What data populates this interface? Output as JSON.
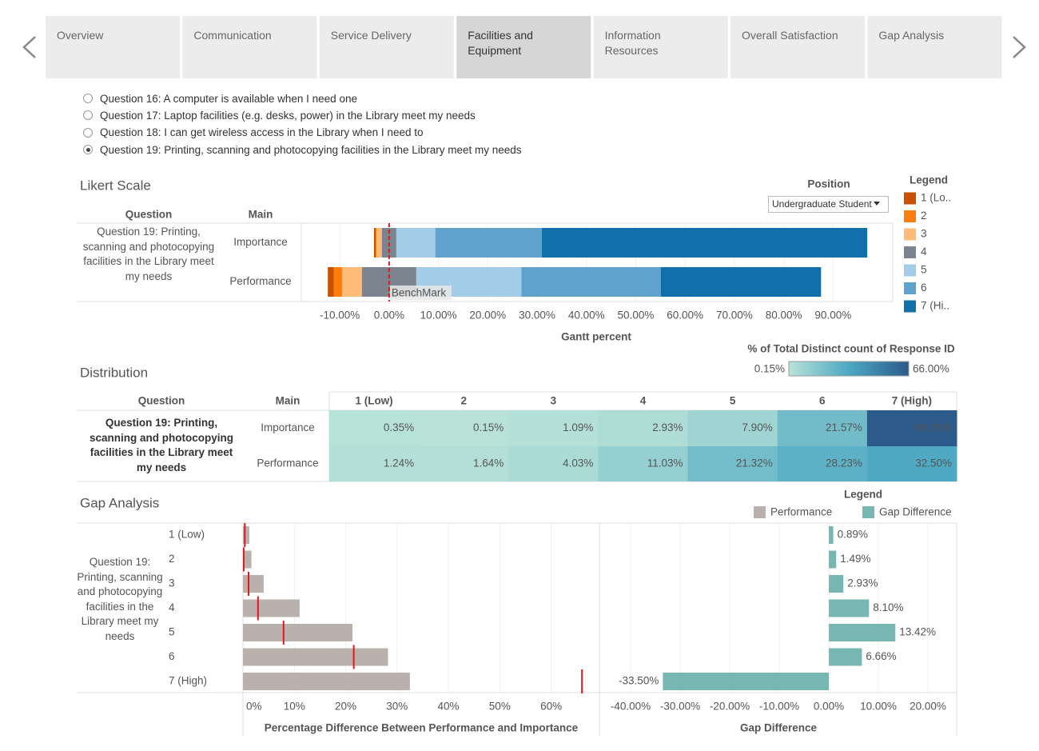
{
  "tabs": [
    "Overview",
    "Communication",
    "Service Delivery",
    "Facilities and Equipment",
    "Information Resources",
    "Overall Satisfaction",
    "Gap Analysis"
  ],
  "active_tab": 3,
  "questions": {
    "options": [
      "Question 16: A computer is available when I need one",
      "Question 17: Laptop facilities (e.g. desks, power) in the Library meet my needs",
      "Question 18: I can get wireless access in the Library when I need to",
      "Question 19: Printing, scanning and photocopying facilities in the Library meet my needs"
    ],
    "selected": 3
  },
  "chart_data": [
    {
      "type": "diverging_bar",
      "title": "Likert Scale",
      "filter_label": "Position",
      "filter_value": "Undergraduate Student",
      "legend_title": "Legend",
      "column_headers": [
        "Question",
        "Main"
      ],
      "group": "Question 19: Printing, scanning and photocopying facilities in the Library meet my needs",
      "categories": [
        "Importance",
        "Performance"
      ],
      "series": [
        {
          "name": "1 (Lo..",
          "color": "#c85200",
          "values": [
            0.35,
            1.24
          ]
        },
        {
          "name": "2",
          "color": "#fc7d0b",
          "values": [
            0.15,
            1.64
          ]
        },
        {
          "name": "3",
          "color": "#ffbc79",
          "values": [
            1.09,
            4.03
          ]
        },
        {
          "name": "4",
          "color": "#7b848f",
          "values": [
            2.93,
            11.03
          ]
        },
        {
          "name": "5",
          "color": "#a3cce9",
          "values": [
            7.9,
            21.32
          ]
        },
        {
          "name": "6",
          "color": "#5fa2ce",
          "values": [
            21.57,
            28.23
          ]
        },
        {
          "name": "7 (Hi..",
          "color": "#1170aa",
          "values": [
            66.0,
            32.5
          ]
        }
      ],
      "benchmark": {
        "value": 0,
        "label": "BenchMark"
      },
      "x_label": "Gantt percent",
      "xlim": [
        -17.8,
        102.1
      ],
      "xticks": [
        {
          "value": -10,
          "label": "-10.00%"
        },
        {
          "value": 0,
          "label": "0.00%"
        },
        {
          "value": 10,
          "label": "10.00%"
        },
        {
          "value": 20,
          "label": "20.00%"
        },
        {
          "value": 30,
          "label": "30.00%"
        },
        {
          "value": 40,
          "label": "40.00%"
        },
        {
          "value": 50,
          "label": "50.00%"
        },
        {
          "value": 60,
          "label": "60.00%"
        },
        {
          "value": 70,
          "label": "70.00%"
        },
        {
          "value": 80,
          "label": "80.00%"
        },
        {
          "value": 90,
          "label": "90.00%"
        }
      ],
      "grid": true
    },
    {
      "type": "heatmap",
      "title": "Distribution",
      "legend_title": "% of Total Distinct count of Response ID",
      "color_lim": [
        {
          "value": 0.15,
          "label": "0.15%"
        },
        {
          "value": 66,
          "label": "66.00%"
        }
      ],
      "colors": [
        "#b8e2d8",
        "#4da8c3",
        "#2b5a8b"
      ],
      "column_headers": [
        "Question",
        "Main"
      ],
      "group": "Question 19: Printing, scanning and photocopying facilities in the Library meet my needs",
      "categories": [
        "Importance",
        "Performance"
      ],
      "columns": [
        "1 (Low)",
        "2",
        "3",
        "4",
        "5",
        "6",
        "7 (High)"
      ],
      "values": [
        [
          0.35,
          0.15,
          1.09,
          2.93,
          7.9,
          21.57,
          66.0
        ],
        [
          1.24,
          1.64,
          4.03,
          11.03,
          21.32,
          28.23,
          32.5
        ]
      ],
      "value_labels": [
        [
          "0.35%",
          "0.15%",
          "1.09%",
          "2.93%",
          "7.90%",
          "21.57%",
          "66.00%"
        ],
        [
          "1.24%",
          "1.64%",
          "4.03%",
          "11.03%",
          "21.32%",
          "28.23%",
          "32.50%"
        ]
      ]
    },
    {
      "type": "bar_with_marker",
      "title": "Gap Analysis",
      "legend_title": "Legend",
      "group": "Question 19: Printing, scanning and photocopying facilities in the Library meet my needs",
      "categories": [
        "1 (Low)",
        "2",
        "3",
        "4",
        "5",
        "6",
        "7 (High)"
      ],
      "series": [
        {
          "name": "Performance",
          "color": "#bab0ac",
          "values": [
            1.24,
            1.64,
            4.03,
            11.03,
            21.32,
            28.23,
            32.5
          ]
        },
        {
          "color": "#e3191c",
          "values": [
            0.35,
            0.15,
            1.09,
            2.93,
            7.9,
            21.57,
            66.0
          ]
        }
      ],
      "x_label": "Percentage Difference Between Performance and Importance",
      "xlim": [
        0,
        69.4
      ],
      "xticks": [
        {
          "value": 0,
          "label": "0%"
        },
        {
          "value": 10,
          "label": "10%"
        },
        {
          "value": 20,
          "label": "20%"
        },
        {
          "value": 30,
          "label": "30%"
        },
        {
          "value": 40,
          "label": "40%"
        },
        {
          "value": 50,
          "label": "50%"
        },
        {
          "value": 60,
          "label": "60%"
        }
      ],
      "grid": true
    },
    {
      "type": "bar",
      "series": [
        {
          "name": "Gap Difference",
          "color": "#76b7b2",
          "values": [
            0.89,
            1.49,
            2.93,
            8.1,
            13.42,
            6.66,
            -33.5
          ],
          "value_labels": [
            "0.89%",
            "1.49%",
            "2.93%",
            "8.10%",
            "13.42%",
            "6.66%",
            "-33.50%"
          ]
        }
      ],
      "x_label": "Gap Difference",
      "xlim": [
        -46.3,
        25.8
      ],
      "xticks": [
        {
          "value": -40,
          "label": "-40.00%"
        },
        {
          "value": -30,
          "label": "-30.00%"
        },
        {
          "value": -20,
          "label": "-20.00%"
        },
        {
          "value": -10,
          "label": "-10.00%"
        },
        {
          "value": 0,
          "label": "0.00%"
        },
        {
          "value": 10,
          "label": "10.00%"
        },
        {
          "value": 20,
          "label": "20.00%"
        }
      ],
      "grid": true
    }
  ]
}
